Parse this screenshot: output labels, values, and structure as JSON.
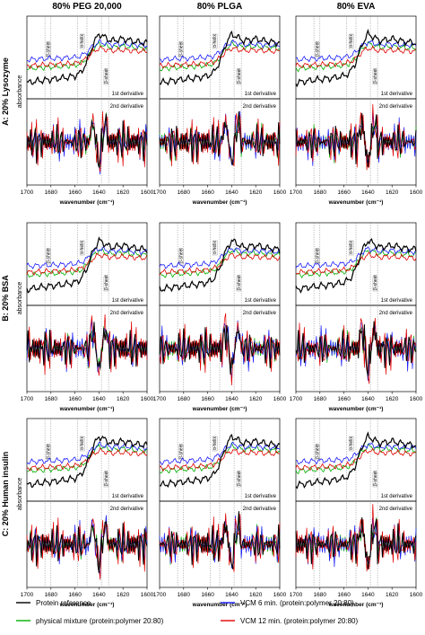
{
  "figure": {
    "columns": [
      "80% PEG 20,000",
      "80% PLGA",
      "80% EVA"
    ],
    "rows": [
      "A: 20% Lysozyme",
      "B: 20% BSA",
      "C: 20% Human insulin"
    ],
    "ylabel": "absorbance",
    "xlabel": "wavenumber (cm⁻¹)",
    "first_derivative_label": "1st derivative",
    "second_derivative_label": "2nd derivative",
    "band_labels": [
      "β-sheet",
      "α-helix",
      "β-sheet"
    ],
    "x_ticks": [
      "1700",
      "1680",
      "1660",
      "1640",
      "1620",
      "1600"
    ]
  },
  "legend": {
    "items": [
      {
        "label": "Protein reference",
        "color": "#000000"
      },
      {
        "label": "physical mixture (protein:polymer 20:80)",
        "color": "#00b000"
      },
      {
        "label": "VCM 6 min. (protein:polymer 20:80)",
        "color": "#1a1aff"
      },
      {
        "label": "VCM 12 min. (protein:polymer 20:80)",
        "color": "#e00000"
      }
    ]
  },
  "chart_data": {
    "type": "line",
    "panel_grid": {
      "rows": 3,
      "cols": 3,
      "subpanels": [
        "1st derivative",
        "2nd derivative"
      ]
    },
    "x_range": [
      1700,
      1600
    ],
    "x_ticks": [
      1700,
      1680,
      1660,
      1640,
      1620,
      1600
    ],
    "band_positions": {
      "beta_sheet_high": [
        1685,
        1680
      ],
      "alpha_helix": [
        1658,
        1650
      ],
      "beta_sheet_low": [
        1638,
        1630
      ]
    },
    "series_colors": [
      "#000000",
      "#00b000",
      "#1a1aff",
      "#e00000"
    ],
    "first_derivative_shape": {
      "x": [
        1700,
        1690,
        1680,
        1670,
        1660,
        1655,
        1650,
        1645,
        1640,
        1635,
        1630,
        1620,
        1610,
        1600
      ],
      "reference": [
        0.15,
        0.18,
        0.2,
        0.22,
        0.25,
        0.3,
        0.45,
        0.7,
        0.85,
        0.8,
        0.75,
        0.78,
        0.74,
        0.72
      ]
    }
  }
}
